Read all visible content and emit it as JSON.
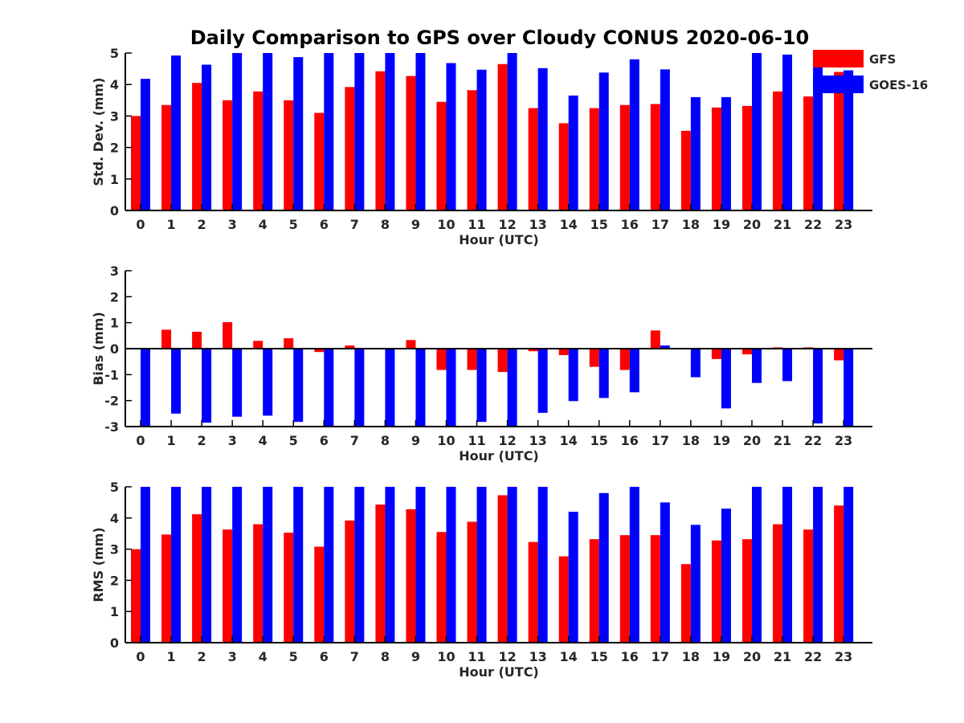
{
  "figure": {
    "title": "Daily Comparison to GPS over Cloudy CONUS 2020-06-10"
  },
  "legend": {
    "entries": [
      "GFS",
      "GOES-16"
    ]
  },
  "colors": {
    "GFS": "#ff0000",
    "GOES-16": "#0000ff",
    "axis": "#000000",
    "text": "#262626"
  },
  "chart_data": [
    {
      "type": "bar",
      "title": "",
      "xlabel": "Hour (UTC)",
      "ylabel": "Std. Dev. (mm)",
      "categories": [
        "0",
        "1",
        "2",
        "3",
        "4",
        "5",
        "6",
        "7",
        "8",
        "9",
        "10",
        "11",
        "12",
        "13",
        "14",
        "15",
        "16",
        "17",
        "18",
        "19",
        "20",
        "21",
        "22",
        "23"
      ],
      "ylim": [
        0,
        5
      ],
      "yticks": [
        0,
        1,
        2,
        3,
        4,
        5
      ],
      "grid": false,
      "legend_position": "top-right",
      "series": [
        {
          "name": "GFS",
          "values": [
            3.0,
            3.35,
            4.05,
            3.5,
            3.78,
            3.5,
            3.1,
            3.92,
            4.42,
            4.27,
            3.45,
            3.82,
            4.65,
            3.25,
            2.77,
            3.25,
            3.35,
            3.38,
            2.53,
            3.27,
            3.32,
            3.78,
            3.62,
            4.4
          ]
        },
        {
          "name": "GOES-16",
          "values": [
            4.18,
            4.92,
            4.63,
            5.0,
            5.0,
            4.87,
            5.0,
            5.0,
            5.0,
            5.0,
            4.68,
            4.47,
            5.0,
            4.52,
            3.65,
            4.38,
            4.8,
            4.48,
            3.6,
            3.6,
            5.0,
            4.95,
            4.95,
            4.45
          ]
        }
      ]
    },
    {
      "type": "bar",
      "title": "",
      "xlabel": "Hour (UTC)",
      "ylabel": "Bias (mm)",
      "categories": [
        "0",
        "1",
        "2",
        "3",
        "4",
        "5",
        "6",
        "7",
        "8",
        "9",
        "10",
        "11",
        "12",
        "13",
        "14",
        "15",
        "16",
        "17",
        "18",
        "19",
        "20",
        "21",
        "22",
        "23"
      ],
      "ylim": [
        -3,
        3
      ],
      "yticks": [
        -3,
        -2,
        -1,
        0,
        1,
        2,
        3
      ],
      "grid": false,
      "zero_line": true,
      "series": [
        {
          "name": "GFS",
          "values": [
            0.0,
            0.73,
            0.65,
            1.02,
            0.3,
            0.4,
            -0.13,
            0.12,
            0.0,
            0.33,
            -0.82,
            -0.82,
            -0.9,
            -0.1,
            -0.25,
            -0.7,
            -0.82,
            0.7,
            0.0,
            -0.4,
            -0.22,
            0.05,
            0.05,
            -0.45
          ]
        },
        {
          "name": "GOES-16",
          "values": [
            -3.0,
            -2.5,
            -2.85,
            -2.62,
            -2.58,
            -2.82,
            -3.0,
            -3.0,
            -3.0,
            -3.0,
            -3.0,
            -2.82,
            -3.0,
            -2.47,
            -2.02,
            -1.9,
            -1.68,
            0.12,
            -1.1,
            -2.3,
            -1.32,
            -1.25,
            -2.88,
            -3.0
          ]
        }
      ]
    },
    {
      "type": "bar",
      "title": "",
      "xlabel": "Hour (UTC)",
      "ylabel": "RMS (mm)",
      "categories": [
        "0",
        "1",
        "2",
        "3",
        "4",
        "5",
        "6",
        "7",
        "8",
        "9",
        "10",
        "11",
        "12",
        "13",
        "14",
        "15",
        "16",
        "17",
        "18",
        "19",
        "20",
        "21",
        "22",
        "23"
      ],
      "ylim": [
        0,
        5
      ],
      "yticks": [
        0,
        1,
        2,
        3,
        4,
        5
      ],
      "grid": false,
      "series": [
        {
          "name": "GFS",
          "values": [
            3.0,
            3.47,
            4.12,
            3.63,
            3.8,
            3.53,
            3.08,
            3.92,
            4.43,
            4.28,
            3.55,
            3.88,
            4.73,
            3.23,
            2.77,
            3.32,
            3.45,
            3.45,
            2.52,
            3.28,
            3.32,
            3.8,
            3.63,
            4.4
          ]
        },
        {
          "name": "GOES-16",
          "values": [
            5.0,
            5.0,
            5.0,
            5.0,
            5.0,
            5.0,
            5.0,
            5.0,
            5.0,
            5.0,
            5.0,
            5.0,
            5.0,
            5.0,
            4.2,
            4.8,
            5.0,
            4.5,
            3.78,
            4.3,
            5.0,
            5.0,
            5.0,
            5.0
          ]
        }
      ]
    }
  ]
}
